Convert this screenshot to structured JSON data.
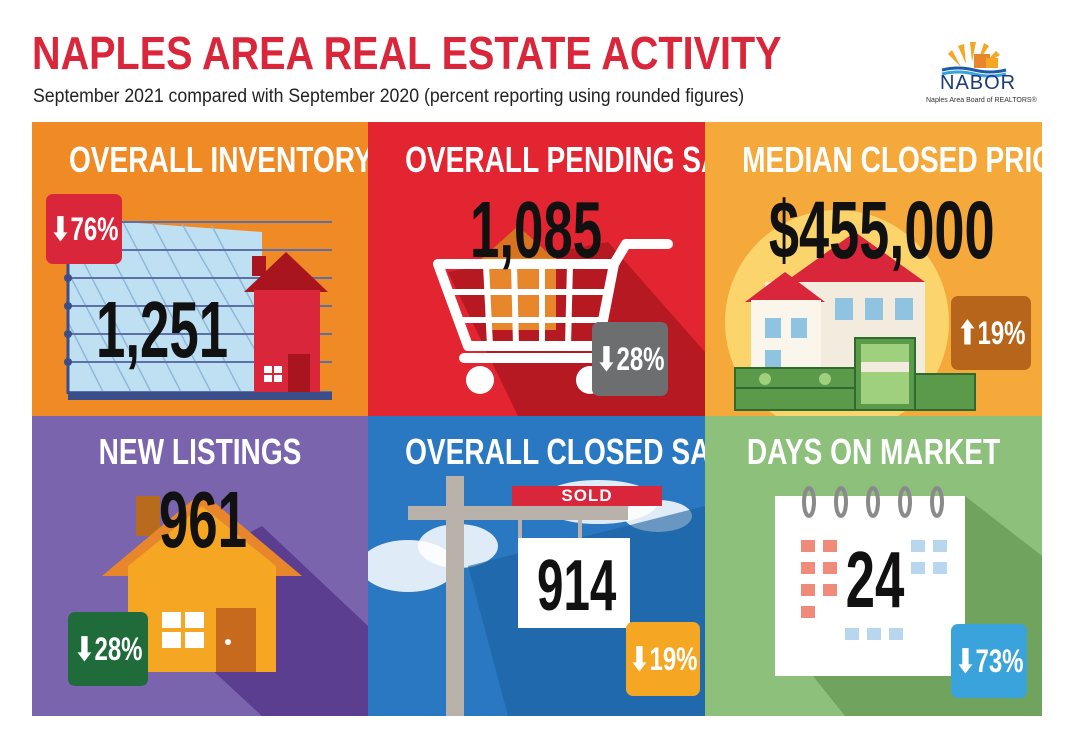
{
  "header": {
    "title": "NAPLES AREA REAL ESTATE ACTIVITY",
    "subtitle": "September 2021 compared with September 2020 (percent reporting using rounded figures)"
  },
  "logo": {
    "name": "NABOR",
    "tagline": "Naples Area Board of REALTORS®"
  },
  "tiles": [
    {
      "title": "OVERALL INVENTORY",
      "value": "1,251",
      "change": "76%",
      "direction": "down",
      "bg": "#f08a24",
      "badge_color": "#d9263a",
      "icon": "house-chart-icon"
    },
    {
      "title": "OVERALL PENDING SALES",
      "value": "1,085",
      "change": "28%",
      "direction": "down",
      "bg": "#e32431",
      "badge_color": "#6d6e70",
      "icon": "shopping-cart-icon"
    },
    {
      "title": "MEDIAN CLOSED PRICE",
      "value": "$455,000",
      "change": "19%",
      "direction": "up",
      "bg": "#f6a93b",
      "badge_color": "#b8651c",
      "icon": "house-money-icon"
    },
    {
      "title": "NEW LISTINGS",
      "value": "961",
      "change": "28%",
      "direction": "down",
      "bg": "#7a64ae",
      "badge_color": "#1f6b3a",
      "icon": "house-icon"
    },
    {
      "title": "OVERALL CLOSED SALES",
      "value": "914",
      "change": "19%",
      "direction": "down",
      "bg": "#2a78c1",
      "badge_color": "#f5a623",
      "icon": "sold-sign-icon",
      "sign_label": "SOLD"
    },
    {
      "title": "DAYS ON MARKET",
      "value": "24",
      "change": "73%",
      "direction": "down",
      "bg": "#8cc07b",
      "badge_color": "#3aa3dc",
      "icon": "calendar-icon"
    }
  ]
}
